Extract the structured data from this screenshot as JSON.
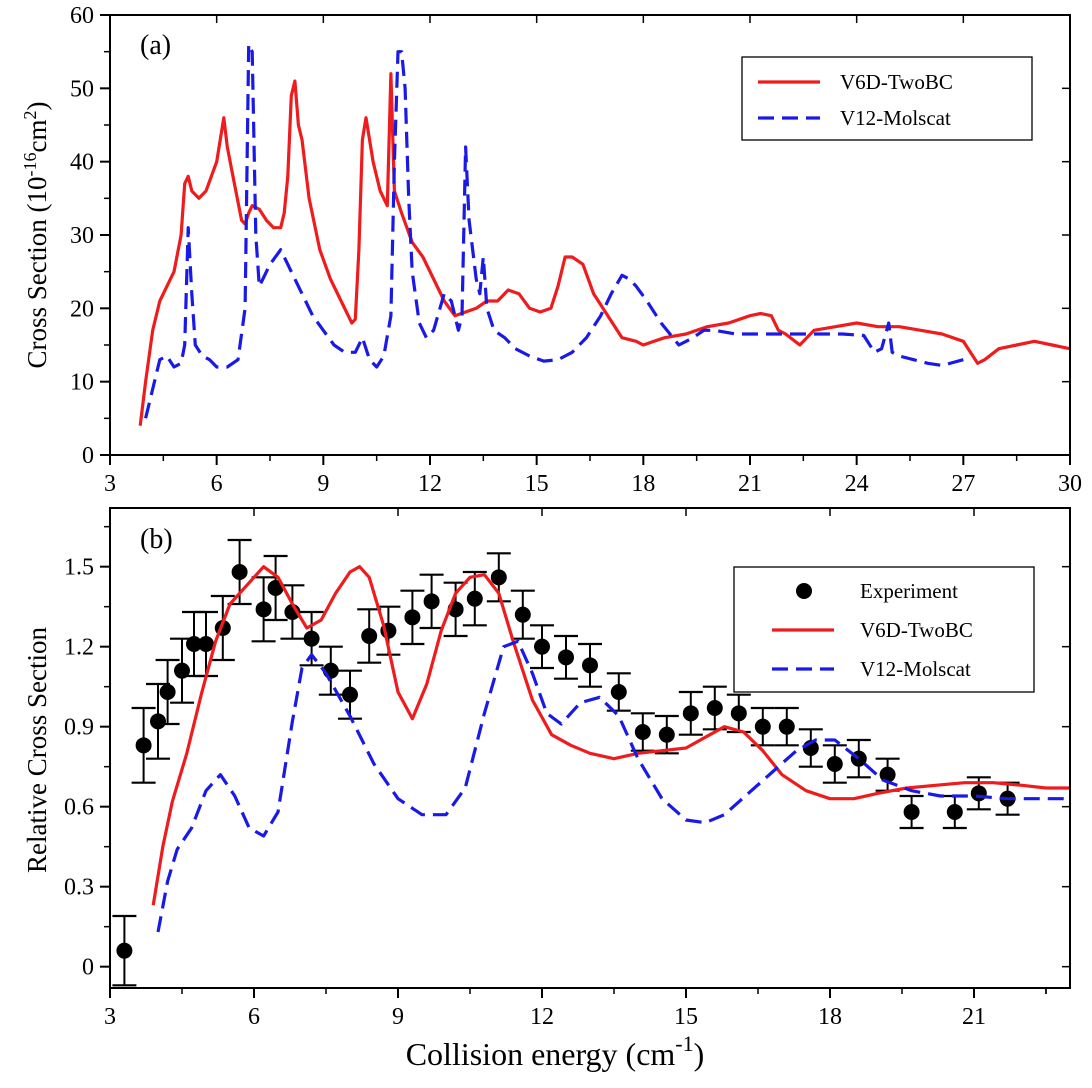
{
  "chart_data": [
    {
      "type": "line",
      "panel_label": "(a)",
      "ylabel": "Cross Section (10",
      "ylabel_exp": "-16",
      "ylabel_unit": "cm",
      "ylabel_unit_exp": "2",
      "ylabel_close": ")",
      "xlim": [
        3,
        30
      ],
      "ylim": [
        0,
        60
      ],
      "xticks": [
        3,
        6,
        9,
        12,
        15,
        18,
        21,
        24,
        27,
        30
      ],
      "yticks": [
        0,
        10,
        20,
        30,
        40,
        50,
        60
      ],
      "legend_position": "top-right",
      "series": [
        {
          "name": "V6D-TwoBC",
          "color": "#ee1c1c",
          "style": "solid",
          "x": [
            3.85,
            4.0,
            4.2,
            4.4,
            4.6,
            4.8,
            5.0,
            5.1,
            5.2,
            5.3,
            5.5,
            5.7,
            6.0,
            6.2,
            6.3,
            6.5,
            6.7,
            6.8,
            6.9,
            7.0,
            7.2,
            7.4,
            7.6,
            7.8,
            7.9,
            8.0,
            8.1,
            8.2,
            8.3,
            8.4,
            8.6,
            8.9,
            9.2,
            9.5,
            9.8,
            9.9,
            10.0,
            10.1,
            10.2,
            10.4,
            10.6,
            10.8,
            10.9,
            11.0,
            11.2,
            11.5,
            11.8,
            12.1,
            12.4,
            12.7,
            13.0,
            13.3,
            13.6,
            13.9,
            14.2,
            14.5,
            14.8,
            15.1,
            15.4,
            15.6,
            15.8,
            16.0,
            16.3,
            16.6,
            17.0,
            17.4,
            17.8,
            18.0,
            18.3,
            18.6,
            19.2,
            19.8,
            20.4,
            21.0,
            21.3,
            21.6,
            21.8,
            22.0,
            22.4,
            22.8,
            23.4,
            24.0,
            24.6,
            25.2,
            25.8,
            26.4,
            27.0,
            27.2,
            27.4,
            27.6,
            28.0,
            28.5,
            29.0,
            29.5,
            30.0
          ],
          "y": [
            4,
            10,
            17,
            21,
            23,
            25,
            30,
            37,
            38,
            36,
            35,
            36,
            40,
            46,
            42,
            37,
            32,
            31.5,
            33,
            34,
            33.5,
            32,
            31,
            31,
            33,
            38,
            49,
            51,
            45,
            43,
            35,
            28,
            24,
            21,
            18,
            18.5,
            28,
            43,
            46,
            40,
            36,
            34,
            52,
            36,
            33,
            29,
            27,
            24,
            21,
            19,
            19.5,
            20,
            21,
            21,
            22.5,
            22,
            20,
            19.5,
            20,
            23,
            27,
            27,
            26,
            22,
            19,
            16,
            15.5,
            15,
            15.5,
            16,
            16.5,
            17.5,
            18,
            19,
            19.3,
            19,
            17,
            16.5,
            15,
            17,
            17.5,
            18,
            17.5,
            17.5,
            17,
            16.5,
            15.5,
            14,
            12.5,
            13,
            14.5,
            15,
            15.5,
            15,
            14.5
          ]
        },
        {
          "name": "V12-Molscat",
          "color": "#1a1ae6",
          "style": "dashed",
          "x": [
            4.0,
            4.2,
            4.4,
            4.6,
            4.8,
            5.0,
            5.1,
            5.2,
            5.3,
            5.4,
            5.6,
            5.8,
            6.0,
            6.3,
            6.6,
            6.8,
            6.9,
            7.0,
            7.1,
            7.2,
            7.3,
            7.5,
            7.8,
            8.1,
            8.4,
            8.7,
            9.0,
            9.3,
            9.6,
            9.9,
            10.1,
            10.3,
            10.5,
            10.7,
            10.9,
            11.0,
            11.1,
            11.2,
            11.3,
            11.4,
            11.5,
            11.7,
            11.9,
            12.1,
            12.4,
            12.6,
            12.8,
            12.9,
            13.0,
            13.1,
            13.3,
            13.4,
            13.5,
            13.6,
            13.8,
            14.1,
            14.4,
            14.8,
            15.2,
            15.6,
            16.0,
            16.4,
            16.8,
            17.1,
            17.4,
            17.6,
            17.8,
            18.1,
            18.5,
            19.0,
            19.4,
            19.7,
            20.0,
            20.6,
            21.2,
            21.8,
            22.4,
            23.0,
            23.6,
            24.2,
            24.5,
            24.7,
            24.9,
            25.0,
            25.2,
            25.6,
            26.0,
            26.4,
            27.0
          ],
          "y": [
            5,
            9,
            13,
            13.5,
            12,
            12.5,
            15,
            31,
            22,
            15,
            13.5,
            13,
            12,
            12,
            13,
            20,
            56,
            55,
            30,
            23,
            24,
            26,
            28,
            25,
            22,
            19,
            17,
            15,
            14,
            14,
            16,
            13,
            12,
            13.5,
            19,
            40,
            55,
            55,
            50,
            35,
            25,
            18,
            16,
            17,
            22,
            21,
            17,
            19,
            42,
            32,
            24,
            22,
            27,
            20,
            17,
            16,
            14.5,
            13.5,
            12.8,
            13,
            14,
            16,
            19,
            22,
            24.5,
            24,
            23,
            21,
            18,
            15,
            16,
            17,
            17,
            16.5,
            16.5,
            16.5,
            16.5,
            16.5,
            16.5,
            16.3,
            14,
            14.5,
            18,
            14,
            13.5,
            13,
            12.5,
            12.2,
            13
          ]
        }
      ]
    },
    {
      "type": "scatter",
      "panel_label": "(b)",
      "xlabel": "Collision energy (cm",
      "xlabel_exp": "-1",
      "xlabel_close": ")",
      "ylabel": "Relative Cross Section",
      "xlim": [
        3,
        23
      ],
      "ylim": [
        -0.08,
        1.72
      ],
      "xticks": [
        3,
        6,
        9,
        12,
        15,
        18,
        21
      ],
      "yticks": [
        "0",
        "0.3",
        "0.6",
        "0.9",
        "1.2",
        "1.5"
      ],
      "legend_position": "top-right",
      "series": [
        {
          "name": "Experiment",
          "color": "#000000",
          "style": "points",
          "x": [
            3.3,
            3.7,
            4.0,
            4.2,
            4.5,
            4.75,
            5.0,
            5.35,
            5.7,
            6.2,
            6.45,
            6.8,
            7.2,
            7.6,
            8.0,
            8.4,
            8.8,
            9.3,
            9.7,
            10.2,
            10.6,
            11.1,
            11.6,
            12.0,
            12.5,
            13.0,
            13.6,
            14.1,
            14.6,
            15.1,
            15.6,
            16.1,
            16.6,
            17.1,
            17.6,
            18.1,
            18.6,
            19.2,
            19.7,
            20.6,
            21.1,
            21.7
          ],
          "y": [
            0.06,
            0.83,
            0.92,
            1.03,
            1.11,
            1.21,
            1.21,
            1.27,
            1.48,
            1.34,
            1.42,
            1.33,
            1.23,
            1.11,
            1.02,
            1.24,
            1.26,
            1.31,
            1.37,
            1.34,
            1.38,
            1.46,
            1.32,
            1.2,
            1.16,
            1.13,
            1.03,
            0.88,
            0.87,
            0.95,
            0.97,
            0.95,
            0.9,
            0.9,
            0.82,
            0.76,
            0.78,
            0.72,
            0.58,
            0.58,
            0.65,
            0.63
          ],
          "err": [
            0.13,
            0.14,
            0.14,
            0.12,
            0.12,
            0.12,
            0.12,
            0.12,
            0.12,
            0.12,
            0.12,
            0.1,
            0.1,
            0.09,
            0.09,
            0.1,
            0.09,
            0.1,
            0.1,
            0.1,
            0.1,
            0.09,
            0.09,
            0.08,
            0.08,
            0.08,
            0.07,
            0.07,
            0.07,
            0.08,
            0.08,
            0.07,
            0.07,
            0.07,
            0.07,
            0.07,
            0.07,
            0.06,
            0.06,
            0.06,
            0.06,
            0.06
          ]
        },
        {
          "name": "V6D-TwoBC",
          "color": "#ee1c1c",
          "style": "solid",
          "x": [
            3.9,
            4.1,
            4.3,
            4.6,
            4.9,
            5.2,
            5.5,
            5.9,
            6.2,
            6.5,
            6.8,
            7.1,
            7.4,
            7.7,
            8.0,
            8.2,
            8.4,
            8.7,
            9.0,
            9.3,
            9.6,
            9.9,
            10.2,
            10.5,
            10.8,
            11.1,
            11.4,
            11.8,
            12.2,
            12.6,
            13.0,
            13.5,
            14.0,
            14.5,
            15.0,
            15.4,
            15.8,
            16.2,
            16.6,
            17.0,
            17.5,
            18.0,
            18.5,
            19.0,
            19.6,
            20.2,
            20.8,
            21.4,
            22.0,
            22.5,
            23.0
          ],
          "y": [
            0.23,
            0.45,
            0.62,
            0.8,
            1.02,
            1.22,
            1.36,
            1.44,
            1.5,
            1.46,
            1.36,
            1.27,
            1.3,
            1.4,
            1.48,
            1.5,
            1.46,
            1.28,
            1.03,
            0.93,
            1.06,
            1.26,
            1.4,
            1.46,
            1.47,
            1.4,
            1.22,
            1.0,
            0.87,
            0.83,
            0.8,
            0.78,
            0.8,
            0.81,
            0.82,
            0.86,
            0.9,
            0.88,
            0.81,
            0.72,
            0.66,
            0.63,
            0.63,
            0.65,
            0.67,
            0.68,
            0.69,
            0.69,
            0.68,
            0.67,
            0.67
          ]
        },
        {
          "name": "V12-Molscat",
          "color": "#1a1ae6",
          "style": "dashed",
          "x": [
            4.0,
            4.2,
            4.4,
            4.7,
            5.0,
            5.3,
            5.6,
            5.9,
            6.2,
            6.5,
            6.8,
            7.0,
            7.2,
            7.5,
            8.0,
            8.5,
            9.0,
            9.5,
            10.0,
            10.4,
            10.8,
            11.2,
            11.5,
            11.8,
            12.1,
            12.4,
            12.8,
            13.2,
            13.6,
            14.0,
            14.5,
            15.0,
            15.4,
            15.8,
            16.3,
            16.8,
            17.3,
            17.7,
            18.1,
            18.6,
            19.1,
            19.7,
            20.3,
            21.0,
            21.7,
            22.3,
            23.0
          ],
          "y": [
            0.13,
            0.32,
            0.44,
            0.52,
            0.66,
            0.72,
            0.64,
            0.52,
            0.49,
            0.58,
            0.92,
            1.12,
            1.17,
            1.1,
            0.94,
            0.76,
            0.63,
            0.57,
            0.57,
            0.67,
            0.95,
            1.2,
            1.22,
            1.1,
            0.95,
            0.91,
            0.99,
            1.01,
            0.94,
            0.78,
            0.63,
            0.55,
            0.54,
            0.57,
            0.65,
            0.73,
            0.81,
            0.85,
            0.85,
            0.78,
            0.7,
            0.66,
            0.64,
            0.64,
            0.63,
            0.63,
            0.63
          ]
        }
      ]
    }
  ]
}
